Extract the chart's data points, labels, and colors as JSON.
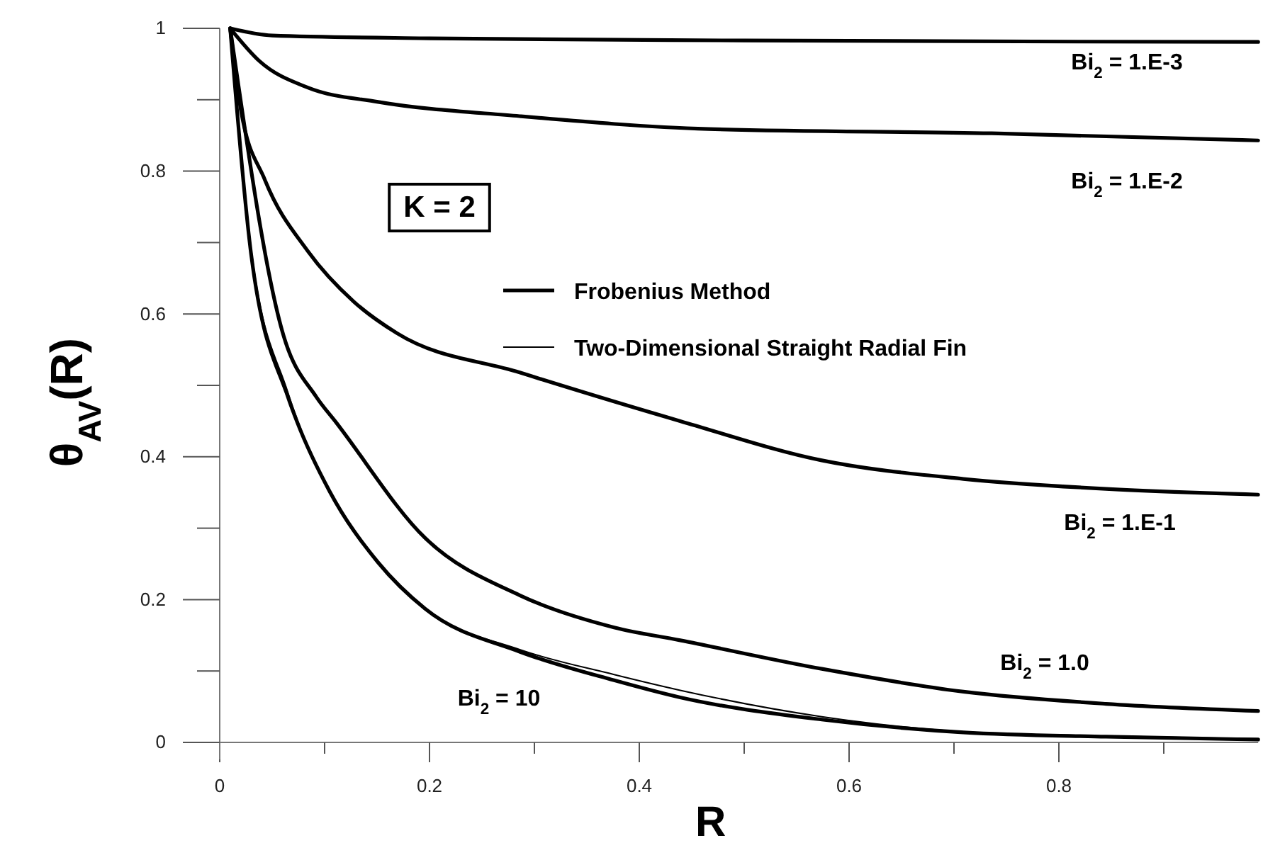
{
  "chart_data": {
    "type": "line",
    "xlabel": "R",
    "ylabel": "θ$_{AV}$(R)",
    "xlim": [
      0,
      0.99
    ],
    "ylim": [
      0,
      1
    ],
    "xticks": [
      0,
      {
        "value": 0.1,
        "label": null
      },
      0.2,
      {
        "value": 0.3,
        "label": null
      },
      0.4,
      {
        "value": 0.5,
        "label": null
      },
      0.6,
      {
        "value": 0.7,
        "label": null
      },
      0.8,
      {
        "value": 0.9,
        "label": null
      }
    ],
    "yticks": [
      0,
      {
        "value": 0.1,
        "label": null
      },
      0.2,
      {
        "value": 0.3,
        "label": null
      },
      0.4,
      {
        "value": 0.5,
        "label": null
      },
      0.6,
      {
        "value": 0.7,
        "label": null
      },
      0.8,
      {
        "value": 0.9,
        "label": null
      },
      1
    ],
    "legend": "center",
    "marker": "none",
    "line_style": "solid",
    "series": [
      {
        "name": "Frobenius Method",
        "color": "#000000",
        "x": [
          0.01,
          0.05,
          0.2,
          0.5,
          0.99
        ],
        "values": [
          1,
          0.99,
          0.986,
          0.983,
          0.981
        ]
      },
      {
        "color": "#000000",
        "x": [
          0.01,
          0.038,
          0.084,
          0.151,
          0.286,
          0.466,
          0.736,
          0.99
        ],
        "values": [
          1,
          0.954,
          0.917,
          0.897,
          0.877,
          0.859,
          0.853,
          0.843
        ]
      },
      {
        "color": "#000000",
        "x": [
          0.01,
          0.02,
          0.043,
          0.084,
          0.128,
          0.169,
          0.286,
          0.439,
          0.574,
          0.709,
          0.845,
          0.99
        ],
        "values": [
          1,
          0.887,
          0.788,
          0.688,
          0.617,
          0.573,
          0.518,
          0.45,
          0.395,
          0.369,
          0.355,
          0.347
        ]
      },
      {
        "color": "#000000",
        "x": [
          0.01,
          0.061,
          0.092,
          0.111,
          0.196,
          0.286,
          0.376,
          0.439,
          0.574,
          0.709,
          0.845,
          0.99
        ],
        "values": [
          1,
          0.569,
          0.484,
          0.448,
          0.286,
          0.206,
          0.161,
          0.143,
          0.103,
          0.071,
          0.054,
          0.044
        ]
      },
      {
        "color": "#000000",
        "x": [
          0.01,
          0.03,
          0.065,
          0.074,
          0.105,
          0.151,
          0.196,
          0.286,
          0.376,
          0.439,
          0.574,
          0.709,
          0.845,
          0.99
        ],
        "values": [
          1,
          0.683,
          0.484,
          0.448,
          0.351,
          0.252,
          0.187,
          0.127,
          0.087,
          0.063,
          0.032,
          0.014,
          0.008,
          0.004
        ]
      },
      {
        "name": "Two-Dimensional Straight Radial Fin",
        "color": "#000000",
        "x": [
          0.01,
          0.03,
          0.065,
          0.105,
          0.151,
          0.196,
          0.286,
          0.376,
          0.439,
          0.574,
          0.709,
          0.845,
          0.99
        ],
        "values": [
          1,
          0.69,
          0.49,
          0.351,
          0.252,
          0.187,
          0.13,
          0.095,
          0.073,
          0.036,
          0.015,
          0.009,
          0.005
        ]
      }
    ],
    "annotations": [
      "Bi$_{2}$ = 1.E-3",
      "Bi$_{2}$ = 1.E-2",
      "Bi$_{2}$ = 1.E-1",
      "Bi$_{2}$ = 1.0",
      "Bi$_{2}$ = 10",
      "K = 2"
    ]
  }
}
